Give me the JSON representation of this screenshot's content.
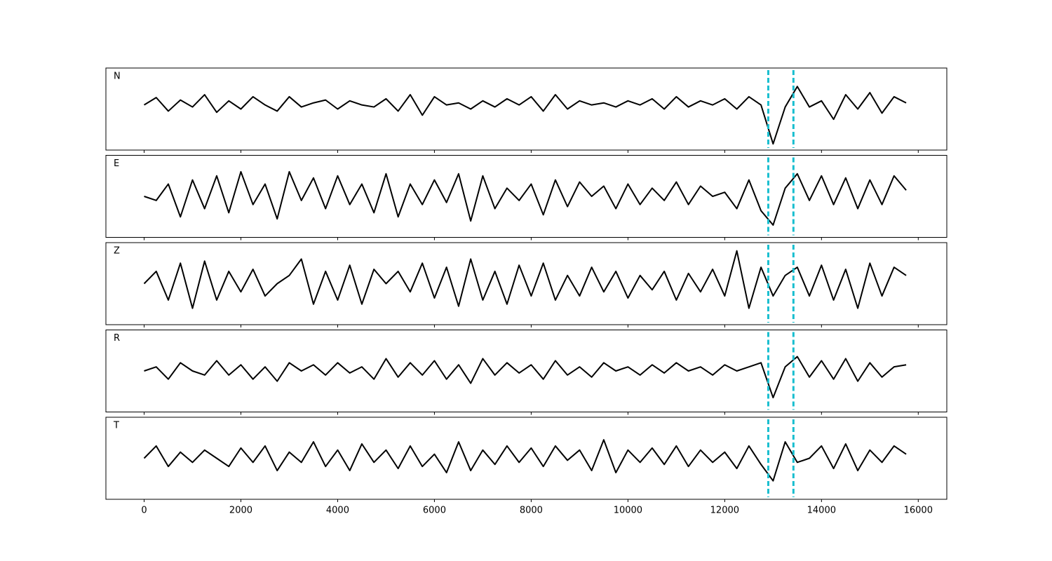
{
  "chart_data": [
    {
      "type": "line",
      "label": "N",
      "color": "#000000",
      "vline_color": "#17becf",
      "vlines": [
        12900,
        13420
      ],
      "xlim": [
        -790,
        16590
      ],
      "ylim": [
        -1,
        1
      ],
      "x": [
        0,
        250,
        500,
        750,
        1000,
        1250,
        1500,
        1750,
        2000,
        2250,
        2500,
        2750,
        3000,
        3250,
        3500,
        3750,
        4000,
        4250,
        4500,
        4750,
        5000,
        5250,
        5500,
        5750,
        6000,
        6250,
        6500,
        6750,
        7000,
        7250,
        7500,
        7750,
        8000,
        8250,
        8500,
        8750,
        9000,
        9250,
        9500,
        9750,
        10000,
        10250,
        10500,
        10750,
        11000,
        11250,
        11500,
        11750,
        12000,
        12250,
        12500,
        12750,
        13000,
        13250,
        13500,
        13750,
        14000,
        14250,
        14500,
        14750,
        15000,
        15250,
        15500,
        15750
      ],
      "values": [
        0.1,
        0.28,
        -0.05,
        0.22,
        0.05,
        0.35,
        -0.08,
        0.2,
        0.0,
        0.3,
        0.1,
        -0.05,
        0.3,
        0.05,
        0.15,
        0.22,
        0.0,
        0.2,
        0.1,
        0.05,
        0.25,
        -0.05,
        0.35,
        -0.15,
        0.3,
        0.1,
        0.15,
        0.0,
        0.2,
        0.05,
        0.25,
        0.1,
        0.3,
        -0.05,
        0.35,
        0.0,
        0.2,
        0.1,
        0.15,
        0.05,
        0.2,
        0.1,
        0.25,
        0.0,
        0.3,
        0.05,
        0.2,
        0.1,
        0.25,
        0.0,
        0.3,
        0.1,
        -0.85,
        0.05,
        0.55,
        0.05,
        0.2,
        -0.25,
        0.35,
        0.0,
        0.4,
        -0.1,
        0.3,
        0.15
      ]
    },
    {
      "type": "line",
      "label": "E",
      "color": "#000000",
      "vline_color": "#17becf",
      "vlines": [
        12900,
        13420
      ],
      "xlim": [
        -790,
        16590
      ],
      "ylim": [
        -1,
        1
      ],
      "x": [
        0,
        250,
        500,
        750,
        1000,
        1250,
        1500,
        1750,
        2000,
        2250,
        2500,
        2750,
        3000,
        3250,
        3500,
        3750,
        4000,
        4250,
        4500,
        4750,
        5000,
        5250,
        5500,
        5750,
        6000,
        6250,
        6500,
        6750,
        7000,
        7250,
        7500,
        7750,
        8000,
        8250,
        8500,
        8750,
        9000,
        9250,
        9500,
        9750,
        10000,
        10250,
        10500,
        10750,
        11000,
        11250,
        11500,
        11750,
        12000,
        12250,
        12500,
        12750,
        13000,
        13250,
        13500,
        13750,
        14000,
        14250,
        14500,
        14750,
        15000,
        15250,
        15500,
        15750
      ],
      "values": [
        0.0,
        -0.1,
        0.3,
        -0.5,
        0.4,
        -0.3,
        0.5,
        -0.4,
        0.6,
        -0.2,
        0.3,
        -0.55,
        0.6,
        -0.1,
        0.45,
        -0.3,
        0.5,
        -0.2,
        0.3,
        -0.4,
        0.55,
        -0.5,
        0.3,
        -0.2,
        0.4,
        -0.15,
        0.55,
        -0.6,
        0.5,
        -0.3,
        0.2,
        -0.1,
        0.3,
        -0.45,
        0.4,
        -0.25,
        0.35,
        0.0,
        0.25,
        -0.3,
        0.3,
        -0.2,
        0.2,
        -0.1,
        0.35,
        -0.2,
        0.25,
        0.0,
        0.1,
        -0.3,
        0.4,
        -0.35,
        -0.7,
        0.2,
        0.55,
        -0.1,
        0.5,
        -0.2,
        0.45,
        -0.3,
        0.4,
        -0.2,
        0.5,
        0.15
      ]
    },
    {
      "type": "line",
      "label": "Z",
      "color": "#000000",
      "vline_color": "#17becf",
      "vlines": [
        12900,
        13420
      ],
      "xlim": [
        -790,
        16590
      ],
      "ylim": [
        -1,
        1
      ],
      "x": [
        0,
        250,
        500,
        750,
        1000,
        1250,
        1500,
        1750,
        2000,
        2250,
        2500,
        2750,
        3000,
        3250,
        3500,
        3750,
        4000,
        4250,
        4500,
        4750,
        5000,
        5250,
        5500,
        5750,
        6000,
        6250,
        6500,
        6750,
        7000,
        7250,
        7500,
        7750,
        8000,
        8250,
        8500,
        8750,
        9000,
        9250,
        9500,
        9750,
        10000,
        10250,
        10500,
        10750,
        11000,
        11250,
        11500,
        11750,
        12000,
        12250,
        12500,
        12750,
        13000,
        13250,
        13500,
        13750,
        14000,
        14250,
        14500,
        14750,
        15000,
        15250,
        15500,
        15750
      ],
      "values": [
        0.0,
        0.3,
        -0.4,
        0.5,
        -0.6,
        0.55,
        -0.4,
        0.3,
        -0.2,
        0.35,
        -0.3,
        0.0,
        0.2,
        0.6,
        -0.5,
        0.3,
        -0.4,
        0.45,
        -0.5,
        0.35,
        0.0,
        0.3,
        -0.2,
        0.5,
        -0.35,
        0.4,
        -0.55,
        0.6,
        -0.4,
        0.3,
        -0.5,
        0.45,
        -0.3,
        0.5,
        -0.4,
        0.2,
        -0.3,
        0.4,
        -0.2,
        0.3,
        -0.35,
        0.2,
        -0.15,
        0.3,
        -0.4,
        0.25,
        -0.2,
        0.35,
        -0.3,
        0.8,
        -0.6,
        0.4,
        -0.3,
        0.2,
        0.4,
        -0.3,
        0.45,
        -0.4,
        0.35,
        -0.6,
        0.5,
        -0.3,
        0.4,
        0.2
      ]
    },
    {
      "type": "line",
      "label": "R",
      "color": "#000000",
      "vline_color": "#17becf",
      "vlines": [
        12900,
        13420
      ],
      "xlim": [
        -790,
        16590
      ],
      "ylim": [
        -1,
        1
      ],
      "x": [
        0,
        250,
        500,
        750,
        1000,
        1250,
        1500,
        1750,
        2000,
        2250,
        2500,
        2750,
        3000,
        3250,
        3500,
        3750,
        4000,
        4250,
        4500,
        4750,
        5000,
        5250,
        5500,
        5750,
        6000,
        6250,
        6500,
        6750,
        7000,
        7250,
        7500,
        7750,
        8000,
        8250,
        8500,
        8750,
        9000,
        9250,
        9500,
        9750,
        10000,
        10250,
        10500,
        10750,
        11000,
        11250,
        11500,
        11750,
        12000,
        12250,
        12500,
        12750,
        13000,
        13250,
        13500,
        13750,
        14000,
        14250,
        14500,
        14750,
        15000,
        15250,
        15500,
        15750
      ],
      "values": [
        0.0,
        0.1,
        -0.2,
        0.2,
        0.0,
        -0.1,
        0.25,
        -0.1,
        0.15,
        -0.2,
        0.1,
        -0.25,
        0.2,
        0.0,
        0.15,
        -0.1,
        0.2,
        -0.05,
        0.1,
        -0.2,
        0.3,
        -0.15,
        0.2,
        -0.1,
        0.25,
        -0.2,
        0.15,
        -0.3,
        0.3,
        -0.1,
        0.2,
        -0.05,
        0.15,
        -0.2,
        0.25,
        -0.1,
        0.1,
        -0.15,
        0.2,
        0.0,
        0.1,
        -0.1,
        0.15,
        -0.05,
        0.2,
        0.0,
        0.1,
        -0.1,
        0.15,
        0.0,
        0.1,
        0.2,
        -0.65,
        0.1,
        0.35,
        -0.15,
        0.25,
        -0.2,
        0.3,
        -0.25,
        0.2,
        -0.15,
        0.1,
        0.15
      ]
    },
    {
      "type": "line",
      "label": "T",
      "color": "#000000",
      "vline_color": "#17becf",
      "vlines": [
        12900,
        13420
      ],
      "xlim": [
        -790,
        16590
      ],
      "ylim": [
        -1,
        1
      ],
      "x": [
        0,
        250,
        500,
        750,
        1000,
        1250,
        1500,
        1750,
        2000,
        2250,
        2500,
        2750,
        3000,
        3250,
        3500,
        3750,
        4000,
        4250,
        4500,
        4750,
        5000,
        5250,
        5500,
        5750,
        6000,
        6250,
        6500,
        6750,
        7000,
        7250,
        7500,
        7750,
        8000,
        8250,
        8500,
        8750,
        9000,
        9250,
        9500,
        9750,
        10000,
        10250,
        10500,
        10750,
        11000,
        11250,
        11500,
        11750,
        12000,
        12250,
        12500,
        12750,
        13000,
        13250,
        13500,
        13750,
        14000,
        14250,
        14500,
        14750,
        15000,
        15250,
        15500,
        15750
      ],
      "values": [
        0.0,
        0.3,
        -0.2,
        0.15,
        -0.1,
        0.2,
        0.0,
        -0.2,
        0.25,
        -0.1,
        0.3,
        -0.3,
        0.15,
        -0.1,
        0.4,
        -0.2,
        0.2,
        -0.3,
        0.35,
        -0.1,
        0.2,
        -0.25,
        0.3,
        -0.2,
        0.1,
        -0.35,
        0.4,
        -0.3,
        0.2,
        -0.15,
        0.3,
        -0.1,
        0.25,
        -0.2,
        0.3,
        -0.05,
        0.2,
        -0.3,
        0.45,
        -0.35,
        0.2,
        -0.1,
        0.25,
        -0.15,
        0.3,
        -0.2,
        0.2,
        -0.1,
        0.15,
        -0.25,
        0.3,
        -0.15,
        -0.55,
        0.4,
        -0.1,
        0.0,
        0.3,
        -0.25,
        0.35,
        -0.3,
        0.2,
        -0.1,
        0.3,
        0.1
      ],
      "xticks": [
        0,
        2000,
        4000,
        6000,
        8000,
        10000,
        12000,
        14000,
        16000
      ]
    }
  ]
}
